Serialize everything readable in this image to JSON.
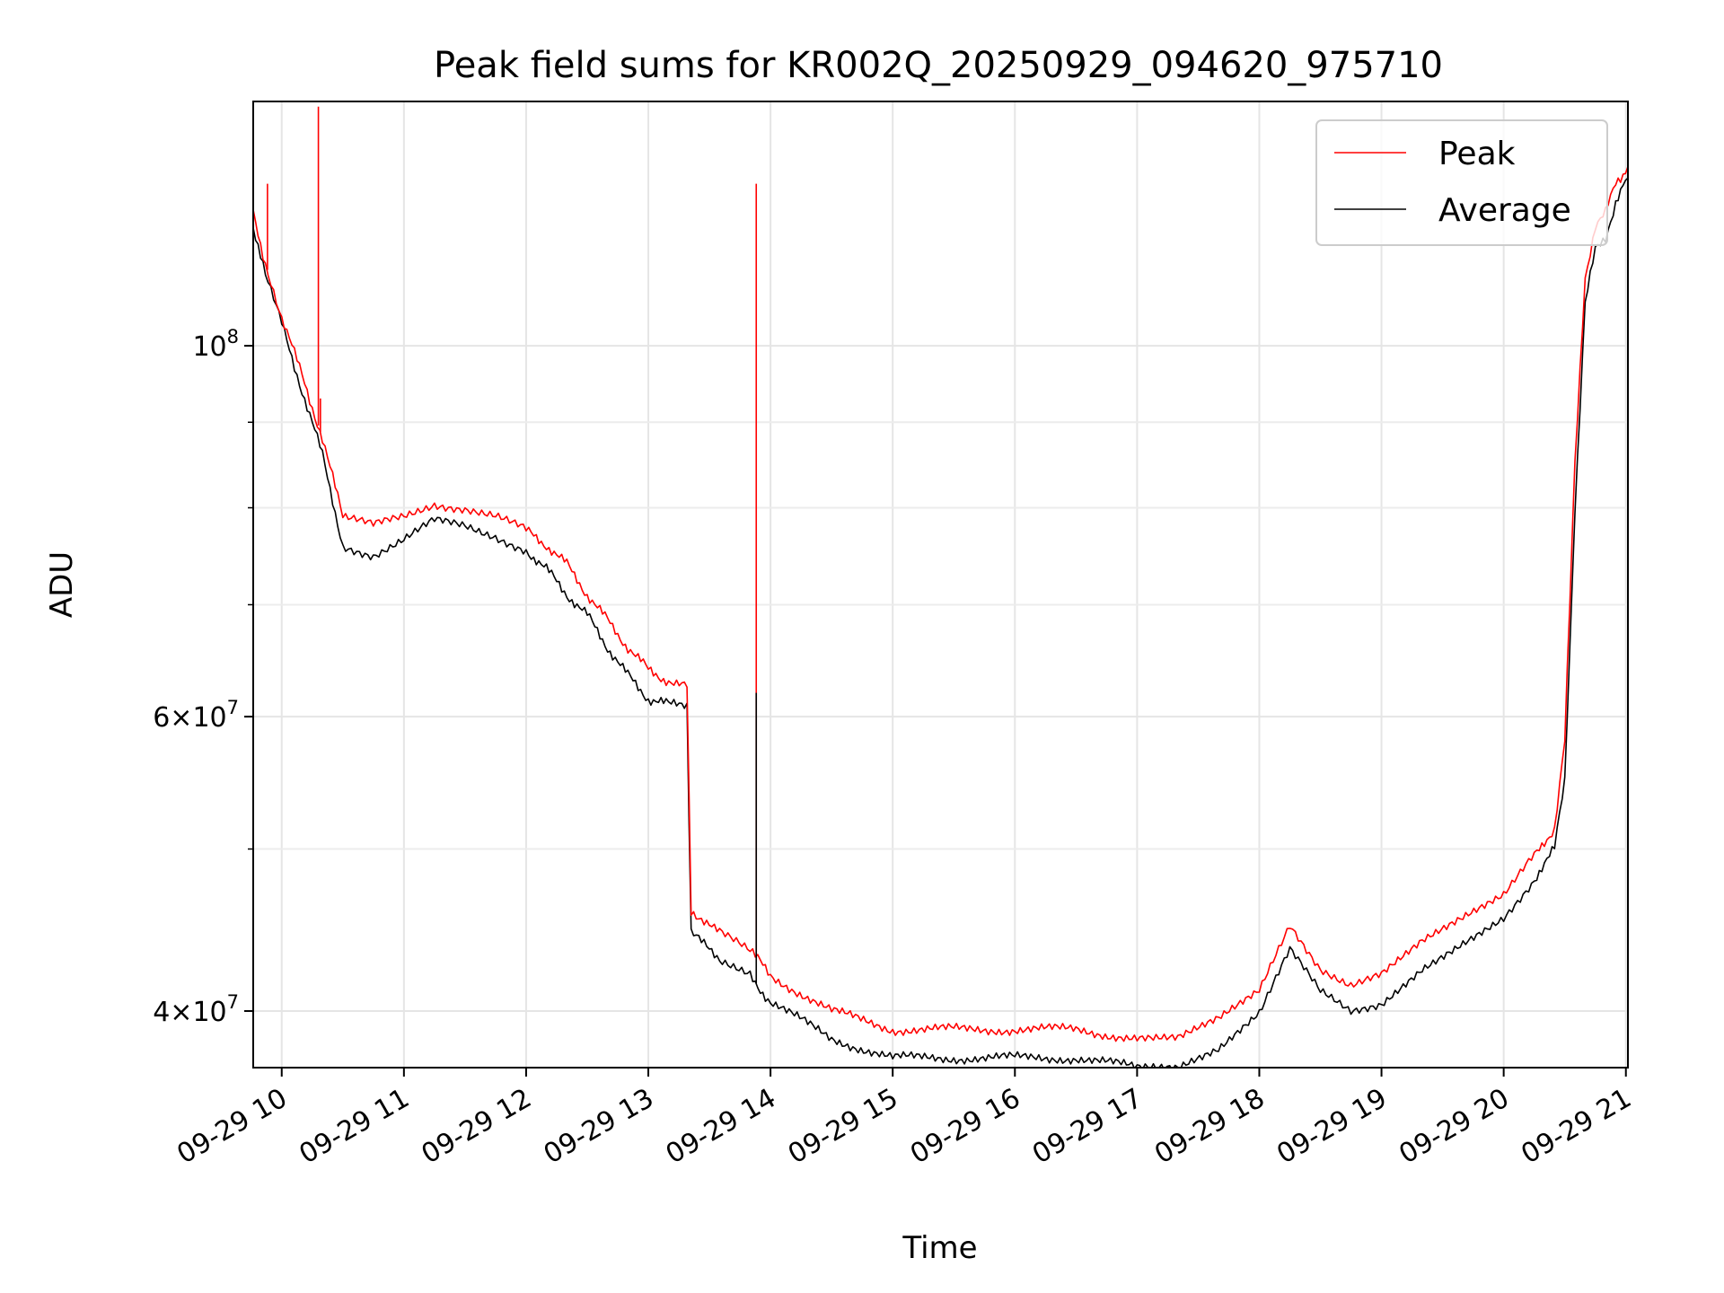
{
  "chart_data": {
    "type": "line",
    "title": "Peak field sums for KR002Q_20250929_094620_975710",
    "xlabel": "Time",
    "ylabel": "ADU",
    "y_scale": "log",
    "ylim": [
      37000000,
      140000000
    ],
    "xlim": [
      "2025-09-29T09:46",
      "2025-09-29T21:01"
    ],
    "grid": true,
    "legend_position": "top-right",
    "colors": {
      "Peak": "#ff0000",
      "Average": "#000000"
    },
    "x_ticks": [
      {
        "t": "2025-09-29T10:00",
        "label": "09-29 10"
      },
      {
        "t": "2025-09-29T11:00",
        "label": "09-29 11"
      },
      {
        "t": "2025-09-29T12:00",
        "label": "09-29 12"
      },
      {
        "t": "2025-09-29T13:00",
        "label": "09-29 13"
      },
      {
        "t": "2025-09-29T14:00",
        "label": "09-29 14"
      },
      {
        "t": "2025-09-29T15:00",
        "label": "09-29 15"
      },
      {
        "t": "2025-09-29T16:00",
        "label": "09-29 16"
      },
      {
        "t": "2025-09-29T17:00",
        "label": "09-29 17"
      },
      {
        "t": "2025-09-29T18:00",
        "label": "09-29 18"
      },
      {
        "t": "2025-09-29T19:00",
        "label": "09-29 19"
      },
      {
        "t": "2025-09-29T20:00",
        "label": "09-29 20"
      },
      {
        "t": "2025-09-29T21:00",
        "label": "09-29 21"
      }
    ],
    "y_major_ticks": [
      {
        "value": 40000000,
        "mantissa": "4",
        "exp": "7"
      },
      {
        "value": 60000000,
        "mantissa": "6",
        "exp": "7"
      },
      {
        "value": 100000000,
        "mantissa": "",
        "exp": "8"
      }
    ],
    "y_minor_ticks": [
      50000000,
      70000000,
      80000000,
      90000000
    ],
    "series": [
      {
        "name": "Peak",
        "x": [
          "2025-09-29T09:46",
          "2025-09-29T09:52",
          "2025-09-29T10:00",
          "2025-09-29T10:10",
          "2025-09-29T10:20",
          "2025-09-29T10:30",
          "2025-09-29T10:45",
          "2025-09-29T11:00",
          "2025-09-29T11:15",
          "2025-09-29T11:30",
          "2025-09-29T11:45",
          "2025-09-29T12:00",
          "2025-09-29T12:10",
          "2025-09-29T12:20",
          "2025-09-29T12:30",
          "2025-09-29T12:40",
          "2025-09-29T12:50",
          "2025-09-29T13:00",
          "2025-09-29T13:10",
          "2025-09-29T13:19",
          "2025-09-29T13:21",
          "2025-09-29T13:35",
          "2025-09-29T13:50",
          "2025-09-29T14:00",
          "2025-09-29T14:30",
          "2025-09-29T15:00",
          "2025-09-29T15:30",
          "2025-09-29T16:00",
          "2025-09-29T16:30",
          "2025-09-29T17:00",
          "2025-09-29T17:20",
          "2025-09-29T17:40",
          "2025-09-29T18:00",
          "2025-09-29T18:15",
          "2025-09-29T18:30",
          "2025-09-29T18:45",
          "2025-09-29T19:00",
          "2025-09-29T19:20",
          "2025-09-29T19:40",
          "2025-09-29T20:00",
          "2025-09-29T20:15",
          "2025-09-29T20:25",
          "2025-09-29T20:30",
          "2025-09-29T20:35",
          "2025-09-29T20:40",
          "2025-09-29T20:45",
          "2025-09-29T20:50",
          "2025-09-29T20:55",
          "2025-09-29T21:01"
        ],
        "y": [
          120000000,
          112000000,
          104000000,
          96000000,
          88000000,
          79000000,
          78000000,
          79000000,
          80500000,
          80000000,
          79000000,
          77500000,
          76000000,
          74000000,
          71000000,
          68500000,
          66000000,
          64000000,
          63000000,
          62500000,
          46000000,
          44500000,
          43500000,
          42000000,
          40000000,
          39000000,
          39000000,
          39000000,
          39000000,
          38500000,
          38500000,
          39500000,
          41000000,
          45000000,
          42500000,
          41500000,
          42000000,
          44000000,
          45500000,
          47000000,
          49500000,
          51500000,
          58000000,
          85000000,
          110000000,
          118000000,
          120000000,
          125000000,
          128000000
        ]
      },
      {
        "name": "Average",
        "x": [
          "2025-09-29T09:46",
          "2025-09-29T09:52",
          "2025-09-29T10:00",
          "2025-09-29T10:10",
          "2025-09-29T10:20",
          "2025-09-29T10:30",
          "2025-09-29T10:45",
          "2025-09-29T11:00",
          "2025-09-29T11:15",
          "2025-09-29T11:30",
          "2025-09-29T11:45",
          "2025-09-29T12:00",
          "2025-09-29T12:10",
          "2025-09-29T12:20",
          "2025-09-29T12:30",
          "2025-09-29T12:40",
          "2025-09-29T12:50",
          "2025-09-29T13:00",
          "2025-09-29T13:10",
          "2025-09-29T13:19",
          "2025-09-29T13:21",
          "2025-09-29T13:35",
          "2025-09-29T13:50",
          "2025-09-29T14:00",
          "2025-09-29T14:30",
          "2025-09-29T15:00",
          "2025-09-29T15:30",
          "2025-09-29T16:00",
          "2025-09-29T16:30",
          "2025-09-29T17:00",
          "2025-09-29T17:20",
          "2025-09-29T17:40",
          "2025-09-29T18:00",
          "2025-09-29T18:15",
          "2025-09-29T18:30",
          "2025-09-29T18:45",
          "2025-09-29T19:00",
          "2025-09-29T19:20",
          "2025-09-29T19:40",
          "2025-09-29T20:00",
          "2025-09-29T20:15",
          "2025-09-29T20:25",
          "2025-09-29T20:30",
          "2025-09-29T20:35",
          "2025-09-29T20:40",
          "2025-09-29T20:45",
          "2025-09-29T20:50",
          "2025-09-29T20:55",
          "2025-09-29T21:01"
        ],
        "y": [
          118000000,
          110000000,
          103000000,
          94000000,
          86000000,
          76000000,
          75000000,
          76500000,
          78500000,
          78000000,
          77000000,
          75500000,
          73500000,
          71000000,
          69000000,
          66000000,
          63500000,
          61500000,
          61000000,
          61000000,
          44500000,
          43000000,
          42000000,
          40500000,
          38500000,
          37500000,
          37500000,
          37500000,
          37500000,
          37000000,
          37000000,
          38000000,
          40000000,
          43500000,
          41000000,
          40000000,
          40500000,
          42500000,
          44000000,
          45500000,
          48000000,
          50000000,
          55000000,
          80000000,
          106000000,
          114000000,
          116000000,
          122000000,
          126000000
        ]
      }
    ],
    "annotations": [
      {
        "series": "Peak",
        "x": "2025-09-29T09:53",
        "y": 125000000,
        "kind": "spike"
      },
      {
        "series": "Peak",
        "x": "2025-09-29T10:18",
        "y": 139000000,
        "kind": "spike"
      },
      {
        "series": "Peak",
        "x": "2025-09-29T10:19",
        "y": 93000000,
        "kind": "spike"
      },
      {
        "series": "Peak",
        "x": "2025-09-29T13:53",
        "y": 125000000,
        "kind": "spike"
      },
      {
        "series": "Average",
        "x": "2025-09-29T13:53",
        "y": 62000000,
        "kind": "spike"
      }
    ]
  }
}
